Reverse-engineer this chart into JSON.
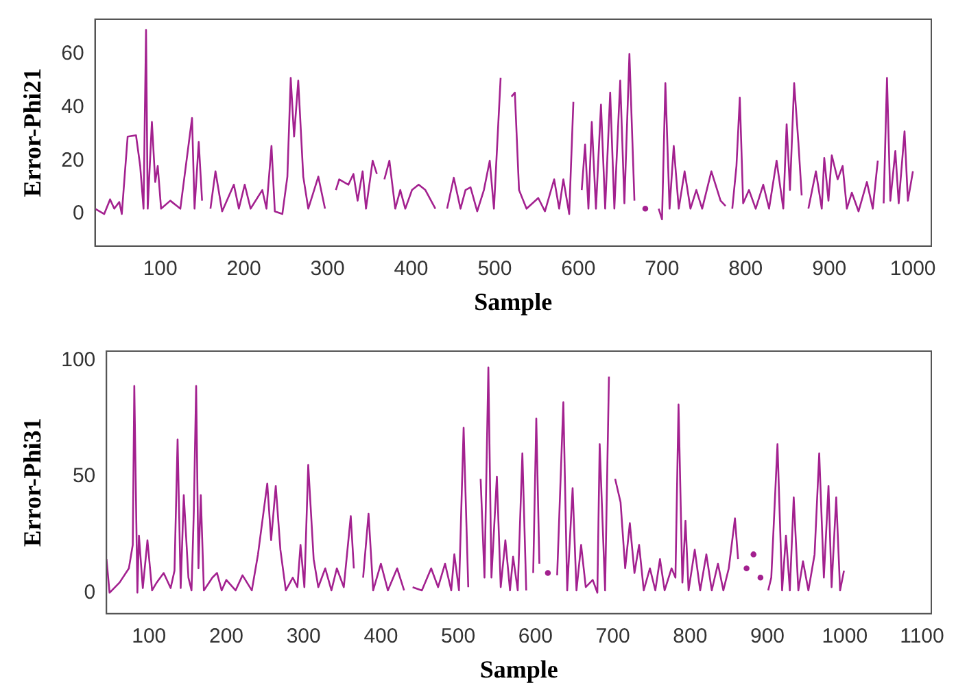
{
  "chart_data": [
    {
      "type": "line",
      "xlabel": "Sample",
      "ylabel": "Error-Phi21",
      "color": "#a3218f",
      "xlim": [
        22,
        1022
      ],
      "ylim": [
        -12,
        73
      ],
      "xticks": [
        100,
        200,
        300,
        400,
        500,
        600,
        700,
        800,
        900,
        1000
      ],
      "yticks": [
        0,
        20,
        40,
        60
      ],
      "grid": false,
      "legend": false,
      "x": [
        22,
        33,
        40,
        45,
        51,
        54,
        61,
        71,
        76,
        80,
        83,
        85,
        90,
        94,
        97,
        101,
        112,
        124,
        138,
        141,
        146,
        150,
        156,
        160,
        166,
        174,
        188,
        194,
        201,
        208,
        222,
        227,
        233,
        237,
        246,
        252,
        256,
        260,
        265,
        271,
        277,
        289,
        297,
        303,
        307,
        310,
        314,
        325,
        331,
        336,
        342,
        346,
        354,
        359,
        363,
        368,
        374,
        381,
        387,
        393,
        401,
        409,
        417,
        429,
        434,
        439,
        443,
        451,
        459,
        465,
        471,
        479,
        487,
        494,
        499,
        507,
        511,
        515,
        520,
        524,
        529,
        538,
        552,
        560,
        571,
        577,
        582,
        589,
        594,
        600,
        604,
        608,
        612,
        616,
        621,
        627,
        632,
        638,
        643,
        650,
        655,
        661,
        667,
        671,
        677,
        680,
        688,
        692,
        696,
        700,
        704,
        709,
        714,
        720,
        727,
        734,
        741,
        748,
        759,
        770,
        776,
        780,
        784,
        789,
        793,
        797,
        804,
        812,
        821,
        828,
        837,
        845,
        849,
        853,
        858,
        863,
        867,
        869,
        873,
        875,
        884,
        891,
        894,
        899,
        903,
        910,
        916,
        921,
        927,
        935,
        945,
        952,
        958,
        962,
        965,
        969,
        973,
        979,
        983,
        990,
        994,
        1000
      ],
      "values": [
        2,
        0,
        5.5,
        2,
        4.5,
        0,
        29,
        29.5,
        18,
        2,
        69,
        2,
        34.5,
        12,
        18,
        2,
        5,
        2,
        36,
        2,
        27,
        5,
        null,
        2,
        16,
        1,
        11,
        2,
        11,
        2,
        9,
        2,
        25.5,
        1,
        0,
        14,
        51,
        29,
        50,
        14,
        2,
        14,
        2,
        null,
        null,
        9,
        13,
        11,
        15,
        5,
        16,
        2,
        20,
        15,
        null,
        13,
        20,
        2,
        9,
        2,
        9,
        11,
        9,
        2,
        null,
        null,
        2,
        13.6,
        2,
        9,
        10,
        1,
        9,
        20,
        2,
        51,
        null,
        null,
        44,
        45.5,
        9,
        2,
        6,
        1,
        13,
        2,
        13,
        0,
        42,
        null,
        9,
        26,
        2,
        34.5,
        2,
        41,
        2,
        45.5,
        2,
        50,
        4,
        60,
        5,
        null,
        null,
        2,
        null,
        null,
        2,
        -2,
        49,
        2,
        25.5,
        2,
        16,
        2,
        9,
        2,
        16,
        5,
        3,
        null,
        2,
        18,
        43.6,
        4,
        9,
        2,
        11,
        2,
        20,
        2,
        33.6,
        9,
        49,
        27,
        7,
        null,
        null,
        2,
        16,
        2,
        21,
        5,
        22,
        13,
        18,
        2,
        8,
        1,
        12,
        2,
        20,
        null,
        4,
        51,
        5,
        23.6,
        4,
        31,
        5,
        16
      ]
    },
    {
      "type": "line",
      "xlabel": "Sample",
      "ylabel": "Error-Phi31",
      "color": "#a3218f",
      "xlim": [
        45,
        1112
      ],
      "ylim": [
        -9,
        104
      ],
      "xticks": [
        100,
        200,
        300,
        400,
        500,
        600,
        700,
        800,
        900,
        1000,
        1100
      ],
      "yticks": [
        0,
        50,
        100
      ],
      "grid": false,
      "legend": false,
      "x": [
        45,
        49,
        62,
        74,
        79,
        81,
        85,
        87,
        92,
        98,
        104,
        110,
        119,
        128,
        133,
        137,
        141,
        145,
        151,
        155,
        158,
        161,
        164,
        167,
        171,
        182,
        188,
        194,
        200,
        212,
        221,
        233,
        241,
        253,
        258,
        264,
        270,
        277,
        286,
        292,
        296,
        301,
        306,
        313,
        319,
        328,
        336,
        343,
        352,
        361,
        365,
        369,
        373,
        377,
        384,
        390,
        400,
        409,
        421,
        430,
        434,
        438,
        441,
        453,
        465,
        474,
        483,
        491,
        495,
        501,
        507,
        513,
        517,
        525,
        529,
        534,
        539,
        543,
        550,
        555,
        561,
        567,
        571,
        577,
        583,
        588,
        592,
        597,
        601,
        605,
        611,
        616,
        623,
        628,
        636,
        641,
        648,
        653,
        659,
        665,
        674,
        680,
        683,
        690,
        695,
        700,
        703,
        710,
        716,
        722,
        728,
        734,
        740,
        748,
        755,
        761,
        767,
        776,
        781,
        785,
        790,
        794,
        798,
        806,
        813,
        821,
        828,
        836,
        843,
        850,
        858,
        862,
        868,
        873,
        877,
        882,
        886,
        891,
        897,
        901,
        905,
        913,
        919,
        924,
        929,
        934,
        940,
        946,
        953,
        961,
        967,
        973,
        979,
        983,
        989,
        994,
        999
      ],
      "values": [
        14.5,
        0,
        4.4,
        10.5,
        20.6,
        89,
        0,
        24.6,
        2,
        22.6,
        1,
        4.4,
        8.5,
        2,
        9.5,
        66,
        2,
        42,
        6.5,
        1,
        35,
        89,
        10.5,
        42,
        1,
        6.5,
        8.5,
        1,
        5.5,
        1,
        7.5,
        1,
        16.5,
        47,
        22.6,
        46,
        18.5,
        1,
        6.5,
        2.4,
        20.6,
        2.4,
        55,
        14.5,
        2.4,
        10.5,
        1,
        10.5,
        2.4,
        33,
        10.5,
        null,
        null,
        6.5,
        34,
        1,
        12.5,
        1,
        10.5,
        1,
        null,
        null,
        2.4,
        1,
        10.5,
        2.4,
        12.5,
        1,
        16.5,
        1,
        71,
        2.4,
        null,
        null,
        49,
        6.5,
        97,
        6.5,
        50,
        2.4,
        22.6,
        1,
        15.5,
        1,
        60,
        1,
        null,
        8.5,
        75,
        12.5,
        null,
        8.5,
        null,
        7.5,
        82,
        1,
        45,
        1,
        20.6,
        2.4,
        5.5,
        0,
        64,
        1,
        93,
        null,
        49,
        39,
        10.5,
        30,
        8.5,
        20.6,
        1,
        10.5,
        1,
        14.5,
        1,
        10.5,
        6.5,
        81,
        4.4,
        31,
        1,
        18.5,
        1,
        16.5,
        1,
        12.5,
        1,
        10.5,
        32,
        14.5,
        null,
        10.5,
        null,
        16.5,
        null,
        6.5,
        null,
        1,
        6.5,
        64,
        1,
        24.6,
        1,
        41,
        1,
        13.5,
        1,
        16.5,
        60,
        6.5,
        46,
        2.4,
        41,
        1,
        9.5
      ]
    }
  ]
}
